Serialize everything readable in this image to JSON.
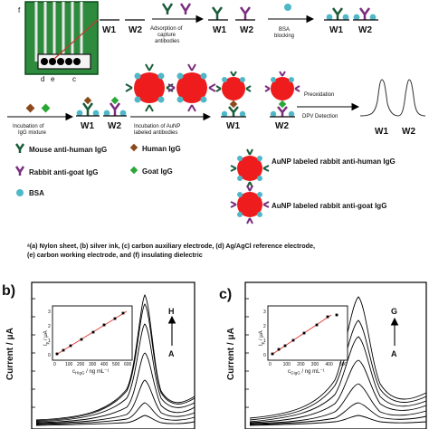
{
  "top": {
    "device_letters": {
      "a": "a",
      "b": "b",
      "c": "c",
      "d": "d",
      "e": "e",
      "f": "f"
    },
    "electrodes": {
      "w1": "W1",
      "w2": "W2"
    },
    "step_adsorption": [
      "Adsorption of",
      "capture",
      "antibodies"
    ],
    "step_bsa": [
      "BSA",
      "blocking"
    ],
    "step_igg": [
      "Incubation of",
      "IgG mixture"
    ],
    "step_aunp": [
      "Incubation of AuNP",
      "labeled antibodies"
    ],
    "step_detect": [
      "Preoxidation",
      "DPV Detection"
    ]
  },
  "legend": {
    "mouse_anti_human": "Mouse anti-human IgG",
    "human_igg": "Human IgG",
    "rabbit_anti_goat": "Rabbit anti-goat IgG",
    "goat_igg": "Goat IgG",
    "bsa": "BSA",
    "aunp_anti_human": "AuNP labeled rabbit anti-human IgG",
    "aunp_anti_goat": "AuNP labeled rabbit anti-goat IgG"
  },
  "footnote": [
    "ᵃ(a) Nylon sheet, (b) silver ink, (c) carbon auxiliary electrode, (d) Ag/AgCl reference electrode,",
    "(e) carbon working electrode, and (f) insulating dielectric"
  ],
  "panel_b": {
    "label": "b)",
    "ylabel": "Current / μA",
    "arrow_top": "H",
    "arrow_bottom": "A",
    "inset_xlabel": "c",
    "inset_xlabel_sub": "HIgG",
    "inset_xlabel_unit": " / ng mL⁻¹",
    "inset_ylabel": "I",
    "inset_ylabel_sub": "p",
    "inset_ylabel_unit": " / μA",
    "inset_xticks": [
      "0",
      "100",
      "200",
      "300",
      "400",
      "500",
      "600"
    ],
    "inset_yticks": [
      "0",
      "1",
      "2",
      "3"
    ]
  },
  "panel_c": {
    "label": "c)",
    "ylabel": "Current / μA",
    "arrow_top": "G",
    "arrow_bottom": "A",
    "inset_xlabel": "c",
    "inset_xlabel_sub": "GIgG",
    "inset_xlabel_unit": " / ng mL⁻¹",
    "inset_ylabel": "I",
    "inset_ylabel_sub": "p",
    "inset_ylabel_unit": " / μA",
    "inset_xticks": [
      "0",
      "100",
      "200",
      "300",
      "400",
      "500"
    ],
    "inset_yticks": [
      "0",
      "1",
      "2",
      "3"
    ]
  },
  "colors": {
    "mouse_ab": "#1a5c3a",
    "rabbit_ab": "#7b2d7e",
    "human_igg": "#8b4a1c",
    "goat_igg": "#2aa835",
    "bsa": "#4fb8c8",
    "aunp": "#ee1c1c",
    "chip": "#1f7a35",
    "fit_line": "#e0332c"
  }
}
